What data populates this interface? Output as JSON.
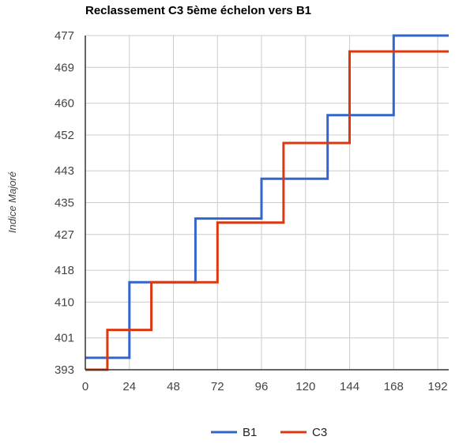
{
  "chart_data": {
    "type": "line",
    "step": true,
    "title": "Reclassement C3 5ème échelon vers B1",
    "xlabel": "",
    "ylabel": "Indice Majoré",
    "xlim": [
      0,
      198
    ],
    "ylim": [
      393,
      477
    ],
    "x_ticks": [
      0,
      24,
      48,
      72,
      96,
      120,
      144,
      168,
      192
    ],
    "y_ticks": [
      393,
      401,
      410,
      418,
      427,
      435,
      443,
      452,
      460,
      469,
      477
    ],
    "grid": true,
    "legend_position": "bottom",
    "series": [
      {
        "name": "B1",
        "color": "#3366cc",
        "points": [
          [
            0,
            396
          ],
          [
            24,
            396
          ],
          [
            24,
            415
          ],
          [
            60,
            415
          ],
          [
            60,
            431
          ],
          [
            96,
            431
          ],
          [
            96,
            441
          ],
          [
            132,
            441
          ],
          [
            132,
            457
          ],
          [
            168,
            457
          ],
          [
            168,
            477
          ],
          [
            198,
            477
          ]
        ]
      },
      {
        "name": "C3",
        "color": "#dc3912",
        "points": [
          [
            0,
            393
          ],
          [
            12,
            393
          ],
          [
            12,
            403
          ],
          [
            36,
            403
          ],
          [
            36,
            415
          ],
          [
            72,
            415
          ],
          [
            72,
            430
          ],
          [
            108,
            430
          ],
          [
            108,
            450
          ],
          [
            144,
            450
          ],
          [
            144,
            473
          ],
          [
            198,
            473
          ]
        ]
      }
    ]
  }
}
